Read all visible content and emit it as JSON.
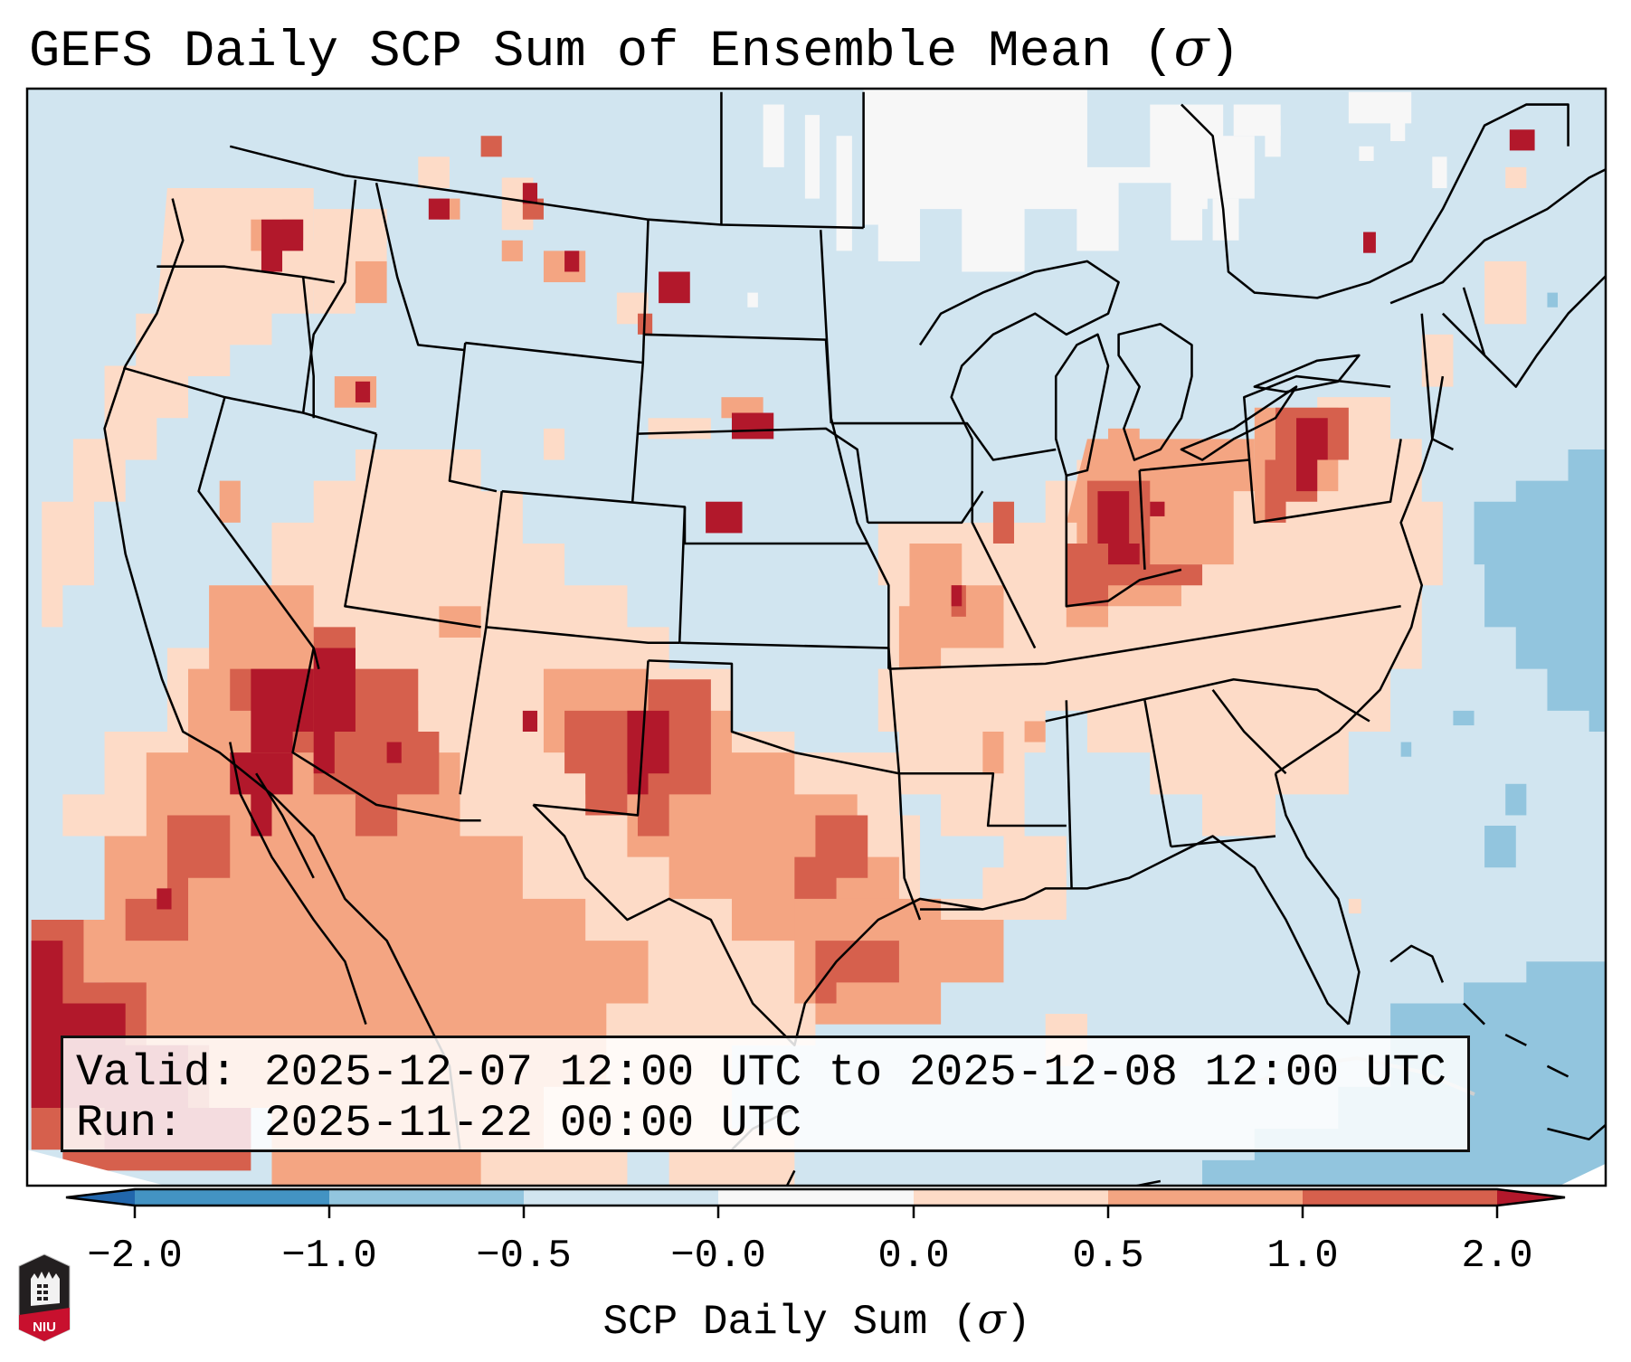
{
  "title": {
    "text": "GEFS Daily SCP Sum of Ensemble Mean (",
    "symbol": "σ",
    "close": ")"
  },
  "info_box": {
    "valid_label": "Valid:",
    "valid_value": "2025-12-07 12:00 UTC to 2025-12-08 12:00 UTC",
    "run_label": "Run:",
    "run_value": "2025-11-22 00:00 UTC"
  },
  "colorbar": {
    "label_text": "SCP Daily Sum (",
    "label_symbol": "σ",
    "label_close": ")",
    "ticks": [
      "−2.0",
      "−1.0",
      "−0.5",
      "−0.0",
      "0.0",
      "0.5",
      "1.0",
      "2.0"
    ],
    "bins": [
      {
        "range": "< -2.0",
        "color": "#2166ac"
      },
      {
        "range": "-2.0 to -1.0",
        "color": "#4393c3"
      },
      {
        "range": "-1.0 to -0.5",
        "color": "#92c5de"
      },
      {
        "range": "-0.5 to -0.0",
        "color": "#d1e5f0"
      },
      {
        "range": "-0.0 to 0.0",
        "color": "#f7f7f7"
      },
      {
        "range": "0.0 to 0.5",
        "color": "#fddbc7"
      },
      {
        "range": "0.5 to 1.0",
        "color": "#f4a582"
      },
      {
        "range": "1.0 to 2.0",
        "color": "#d6604d"
      },
      {
        "range": "> 2.0",
        "color": "#b2182b"
      }
    ],
    "extend": "both"
  },
  "logo": {
    "text": "NIU",
    "colors": {
      "shield": "#231f20",
      "band": "#c8102e"
    }
  },
  "map": {
    "projection": "Lambert Conformal (CONUS)",
    "background_color": "#d1e5f0",
    "boundary_color": "#000000",
    "features": [
      "US states",
      "Canada coastline",
      "Mexico",
      "Great Lakes",
      "Caribbean islands"
    ]
  }
}
